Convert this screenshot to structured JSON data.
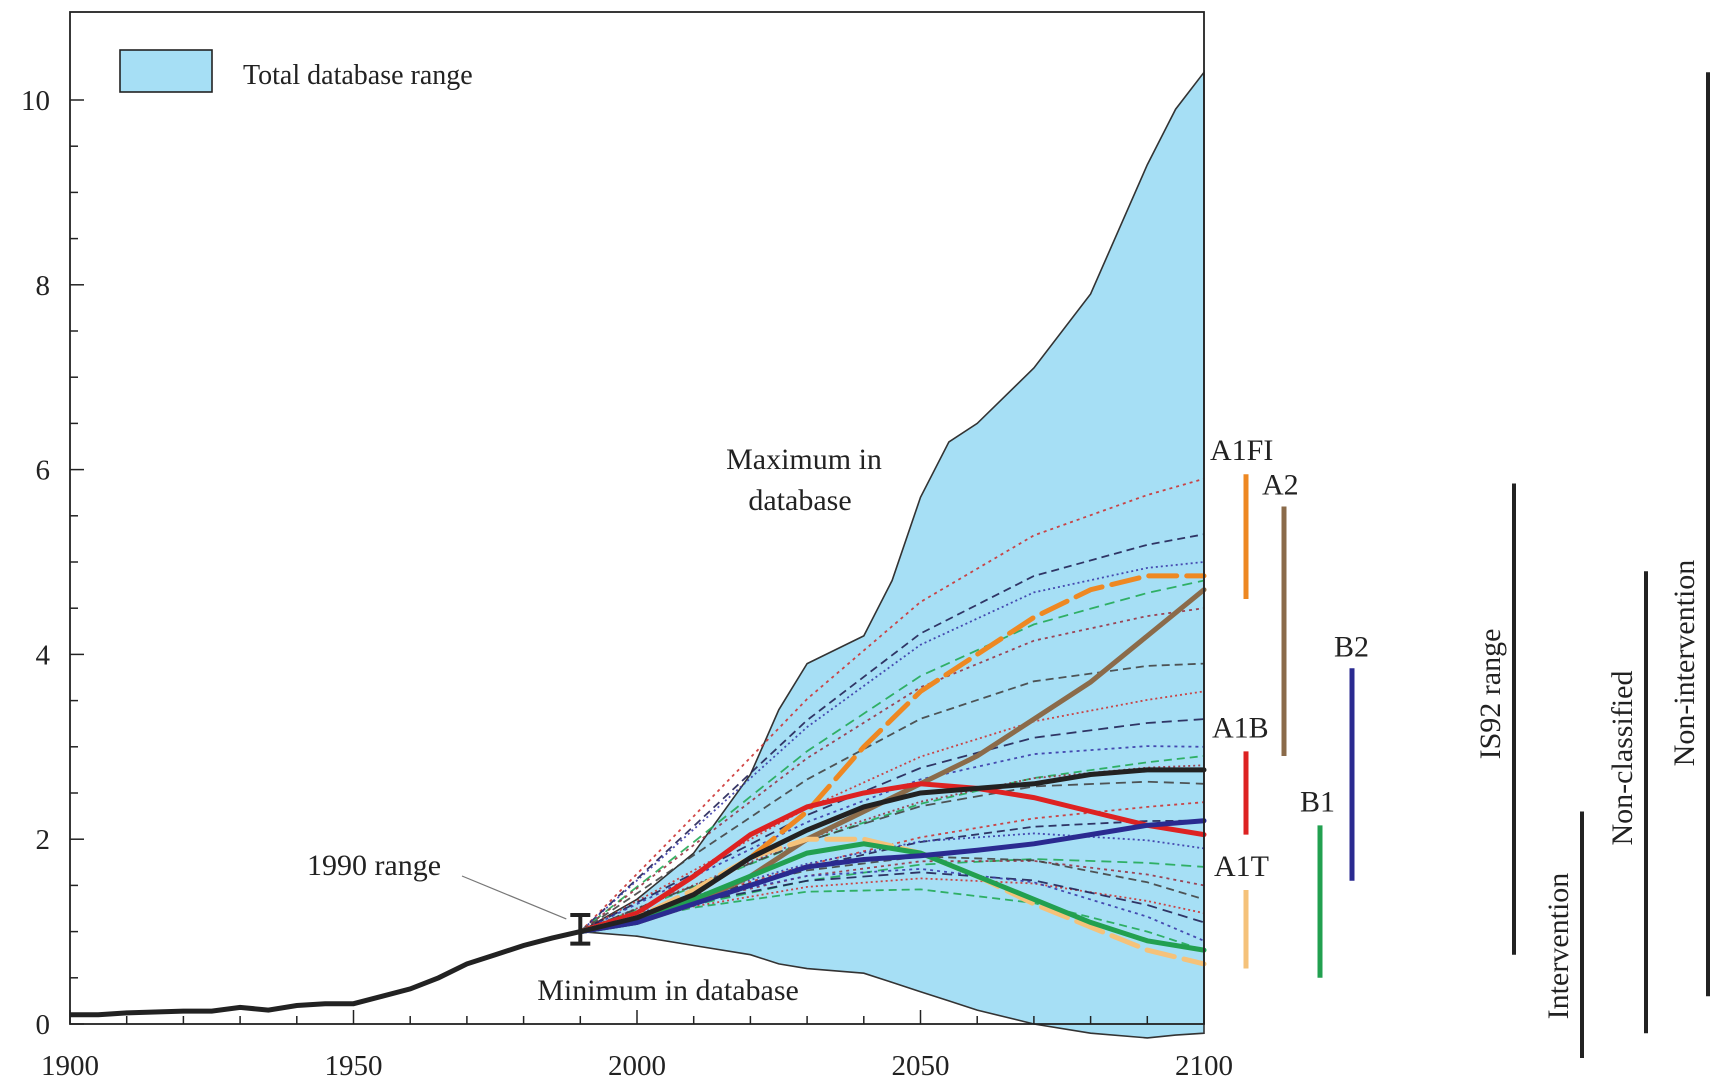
{
  "chart_data": {
    "type": "area",
    "title": "",
    "xlabel": "",
    "ylabel": "",
    "xlim": [
      1900,
      2100
    ],
    "ylim": [
      0,
      10.5
    ],
    "x_ticks": [
      1900,
      1950,
      2000,
      2050,
      2100
    ],
    "y_ticks": [
      0,
      2,
      4,
      6,
      8,
      10
    ],
    "x_tick_labels": [
      "1900",
      "1950",
      "2000",
      "2050",
      "2100"
    ],
    "y_tick_labels": [
      "0",
      "2",
      "4",
      "6",
      "8",
      "10"
    ],
    "legend": {
      "label": "Total database range",
      "color": "#a6dff5",
      "position": "top-left"
    },
    "annotations": {
      "maximum_line1": "Maximum in",
      "maximum_line2": "database",
      "minimum": "Minimum in database",
      "range_1990": "1990 range"
    },
    "database_range": {
      "x": [
        1990,
        2000,
        2010,
        2020,
        2025,
        2030,
        2040,
        2045,
        2050,
        2055,
        2060,
        2070,
        2080,
        2090,
        2095,
        2100
      ],
      "upper": [
        1.0,
        1.35,
        1.85,
        2.7,
        3.4,
        3.9,
        4.2,
        4.8,
        5.7,
        6.3,
        6.5,
        7.1,
        7.9,
        9.3,
        9.9,
        10.3
      ],
      "lower": [
        1.0,
        0.95,
        0.85,
        0.75,
        0.65,
        0.6,
        0.55,
        0.45,
        0.35,
        0.25,
        0.15,
        0.0,
        -0.1,
        -0.15,
        -0.12,
        -0.1
      ]
    },
    "historical": {
      "x": [
        1900,
        1905,
        1910,
        1915,
        1920,
        1925,
        1930,
        1935,
        1940,
        1945,
        1950,
        1955,
        1960,
        1965,
        1970,
        1975,
        1980,
        1985,
        1990
      ],
      "y": [
        0.1,
        0.1,
        0.12,
        0.13,
        0.14,
        0.14,
        0.18,
        0.15,
        0.2,
        0.22,
        0.22,
        0.3,
        0.38,
        0.5,
        0.65,
        0.75,
        0.85,
        0.93,
        1.0
      ]
    },
    "range_1990": {
      "x": 1990,
      "low": 0.87,
      "high": 1.18
    },
    "series": [
      {
        "name": "A1FI",
        "color": "#ee8822",
        "style": "long-dash",
        "x": [
          1990,
          2000,
          2010,
          2020,
          2030,
          2040,
          2050,
          2060,
          2070,
          2080,
          2090,
          2100
        ],
        "y": [
          1.0,
          1.15,
          1.4,
          1.8,
          2.3,
          3.0,
          3.6,
          4.0,
          4.4,
          4.7,
          4.85,
          4.85
        ]
      },
      {
        "name": "A2",
        "color": "#8b6b4a",
        "style": "solid",
        "x": [
          1990,
          2000,
          2010,
          2020,
          2030,
          2040,
          2050,
          2060,
          2070,
          2080,
          2090,
          2100
        ],
        "y": [
          1.0,
          1.1,
          1.3,
          1.6,
          2.0,
          2.3,
          2.6,
          2.9,
          3.3,
          3.7,
          4.2,
          4.7
        ]
      },
      {
        "name": "A1B",
        "color": "#dd2222",
        "style": "solid",
        "x": [
          1990,
          2000,
          2010,
          2020,
          2030,
          2040,
          2050,
          2060,
          2070,
          2080,
          2090,
          2100
        ],
        "y": [
          1.0,
          1.2,
          1.6,
          2.05,
          2.35,
          2.5,
          2.6,
          2.55,
          2.45,
          2.3,
          2.15,
          2.05
        ]
      },
      {
        "name": "A1T",
        "color": "#f5c27a",
        "style": "long-dash",
        "x": [
          1990,
          2000,
          2010,
          2020,
          2030,
          2040,
          2050,
          2060,
          2070,
          2080,
          2090,
          2100
        ],
        "y": [
          1.0,
          1.15,
          1.45,
          1.8,
          2.0,
          2.0,
          1.85,
          1.6,
          1.3,
          1.05,
          0.8,
          0.65
        ]
      },
      {
        "name": "B1",
        "color": "#22a050",
        "style": "solid",
        "x": [
          1990,
          2000,
          2010,
          2020,
          2030,
          2040,
          2050,
          2060,
          2070,
          2080,
          2090,
          2100
        ],
        "y": [
          1.0,
          1.1,
          1.35,
          1.6,
          1.85,
          1.95,
          1.85,
          1.6,
          1.35,
          1.1,
          0.9,
          0.8
        ]
      },
      {
        "name": "B2",
        "color": "#2a2a90",
        "style": "solid",
        "x": [
          1990,
          2000,
          2010,
          2020,
          2030,
          2040,
          2050,
          2060,
          2070,
          2080,
          2090,
          2100
        ],
        "y": [
          1.0,
          1.1,
          1.3,
          1.5,
          1.7,
          1.78,
          1.82,
          1.88,
          1.95,
          2.05,
          2.15,
          2.2
        ]
      },
      {
        "name": "",
        "color": "#222222",
        "style": "solid",
        "x": [
          1990,
          2000,
          2010,
          2020,
          2030,
          2040,
          2050,
          2060,
          2070,
          2080,
          2090,
          2100
        ],
        "y": [
          1.0,
          1.15,
          1.4,
          1.8,
          2.1,
          2.35,
          2.5,
          2.55,
          2.6,
          2.7,
          2.75,
          2.75
        ]
      }
    ],
    "scenario_bars": [
      {
        "label": "A1FI",
        "color": "#ee8822",
        "low": 4.6,
        "high": 5.95
      },
      {
        "label": "A2",
        "color": "#8b6b4a",
        "low": 2.9,
        "high": 5.6
      },
      {
        "label": "A1B",
        "color": "#dd2222",
        "low": 2.05,
        "high": 2.95
      },
      {
        "label": "A1T",
        "color": "#f5c27a",
        "low": 0.6,
        "high": 1.45
      },
      {
        "label": "B1",
        "color": "#22a050",
        "low": 0.5,
        "high": 2.15
      },
      {
        "label": "B2",
        "color": "#2a2a90",
        "low": 1.55,
        "high": 3.85
      }
    ],
    "range_bars": [
      {
        "label": "IS92 range",
        "low": 0.75,
        "high": 5.85
      },
      {
        "label": "Intervention",
        "low": -0.4,
        "high": 2.3
      },
      {
        "label": "Non-classified",
        "low": -0.1,
        "high": 4.9
      },
      {
        "label": "Non-intervention",
        "low": 0.3,
        "high": 10.3
      }
    ]
  }
}
